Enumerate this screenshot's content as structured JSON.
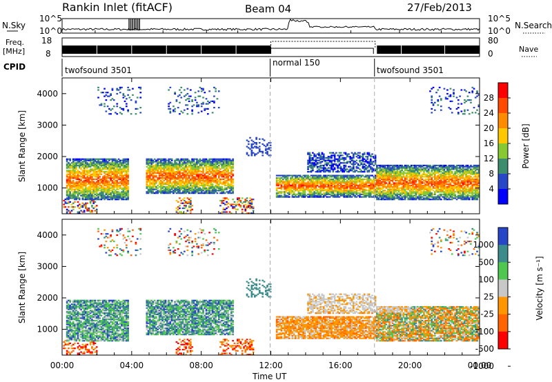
{
  "header": {
    "station": "Rankin Inlet (fitACF)",
    "beam": "Beam 04",
    "date": "27/Feb/2013"
  },
  "top_panels": {
    "nsky_label": "N.Sky",
    "nsky_ticks": [
      "10^5",
      "10^0"
    ],
    "nsearch_label": "N.Search",
    "nsearch_ticks": [
      "10^5",
      "10^0"
    ],
    "freq_label": "Freq.",
    "freq_unit": "[MHz]",
    "freq_ticks": [
      "18",
      "8"
    ],
    "nave_label": "Nave",
    "nave_ticks": [
      "80",
      "0"
    ],
    "cpid_label": "CPID",
    "cpid_segments": [
      {
        "name": "twofsound 3501",
        "start_h": 0,
        "end_h": 12
      },
      {
        "name": "normal 150",
        "start_h": 12,
        "end_h": 18
      },
      {
        "name": "twofsound 3501",
        "start_h": 18,
        "end_h": 24
      }
    ]
  },
  "colorbars": {
    "power": {
      "label": "Power [dB]",
      "ticks": [
        "28",
        "24",
        "20",
        "16",
        "12",
        "8",
        "4"
      ],
      "colors": [
        "#ff0000",
        "#ff4a00",
        "#ff8c00",
        "#ffc800",
        "#88c832",
        "#3c8c6e",
        "#2846c8",
        "#0000ff"
      ]
    },
    "velocity": {
      "label": "Velocity [m s⁻¹]",
      "ticks": [
        "1000",
        "500",
        "100",
        "25",
        "-25",
        "-100",
        "-500",
        "-1000"
      ],
      "colors": [
        "#2846c8",
        "#3c8c8c",
        "#50c850",
        "#c8c8c8",
        "#ff9600",
        "#ff6400",
        "#ff0000"
      ]
    }
  },
  "chart_data": [
    {
      "type": "heatmap",
      "name": "power",
      "ylabel": "Slant Range [km]",
      "xlim": [
        0,
        24
      ],
      "ylim": [
        180,
        4500
      ],
      "yticks": [
        1000,
        2000,
        3000,
        4000
      ],
      "colorbar": "Power [dB]",
      "bands": [
        {
          "t0": 0.2,
          "t1": 3.8,
          "r0": 600,
          "r1": 1900,
          "level": "high"
        },
        {
          "t0": 4.8,
          "t1": 9.8,
          "r0": 800,
          "r1": 1900,
          "level": "high"
        },
        {
          "t0": 12.2,
          "t1": 18,
          "r0": 700,
          "r1": 1400,
          "level": "high"
        },
        {
          "t0": 18,
          "t1": 24,
          "r0": 600,
          "r1": 1700,
          "level": "high"
        },
        {
          "t0": 14,
          "t1": 18,
          "r0": 1500,
          "r1": 2100,
          "level": "low"
        }
      ]
    },
    {
      "type": "heatmap",
      "name": "velocity",
      "ylabel": "Slant Range [km]",
      "xlabel": "Time UT",
      "xlim": [
        0,
        24
      ],
      "ylim": [
        180,
        4500
      ],
      "xticks": [
        "00:00",
        "04:00",
        "08:00",
        "12:00",
        "16:00",
        "20:00",
        "00:00"
      ],
      "yticks": [
        1000,
        2000,
        3000,
        4000
      ],
      "colorbar": "Velocity [m s⁻¹]"
    }
  ]
}
